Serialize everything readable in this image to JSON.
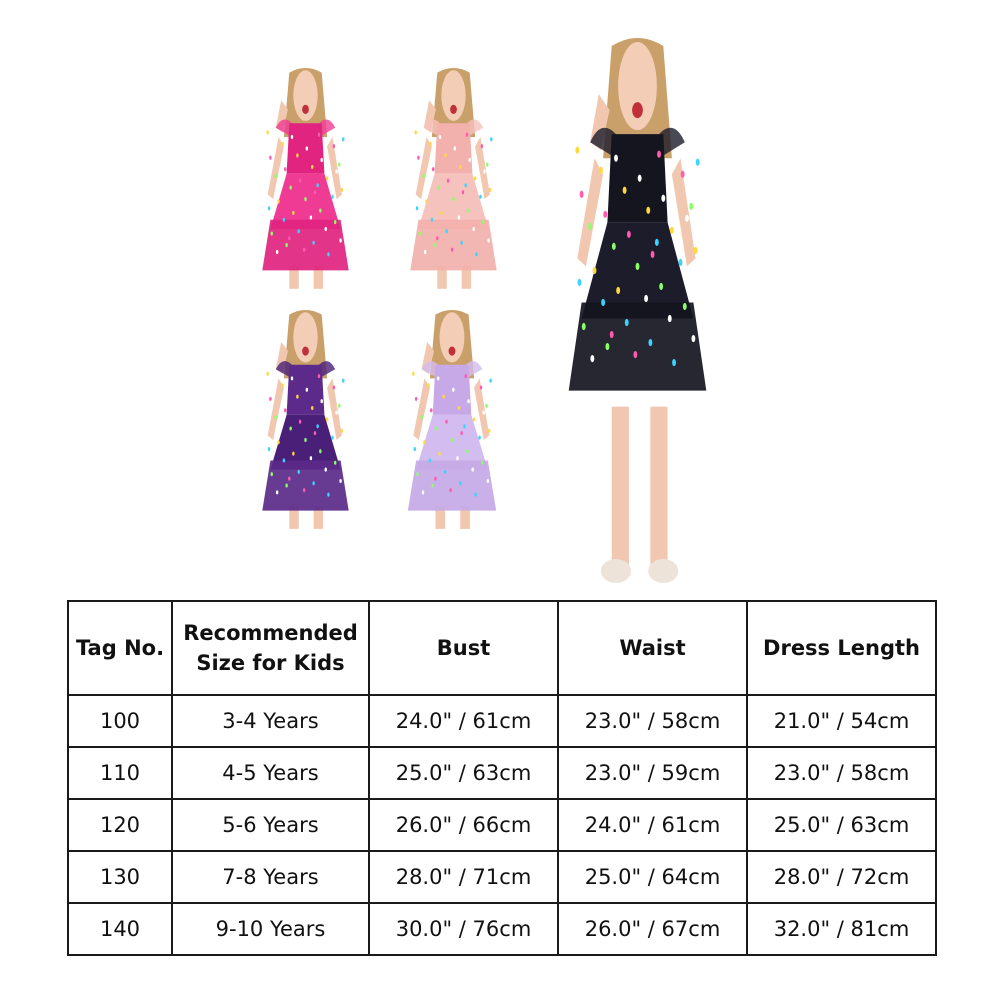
{
  "product_images": [
    {
      "name": "pink",
      "dress_color": "#e0247f",
      "skirt_color": "#f03b95"
    },
    {
      "name": "peach",
      "dress_color": "#f2b1ad",
      "skirt_color": "#f6c2bd"
    },
    {
      "name": "purple",
      "dress_color": "#5b2a8a",
      "skirt_color": "#4a1f78"
    },
    {
      "name": "lavender",
      "dress_color": "#c6a9e6",
      "skirt_color": "#d3bcef"
    },
    {
      "name": "black",
      "dress_color": "#151520",
      "skirt_color": "#1c1c2a"
    }
  ],
  "size_table": {
    "headers": [
      "Tag No.",
      "Recommended Size for Kids",
      "Bust",
      "Waist",
      "Dress Length"
    ],
    "header_lines": {
      "recommended_1": "Recommended",
      "recommended_2": "Size for Kids"
    },
    "rows": [
      [
        "100",
        "3-4 Years",
        "24.0\" / 61cm",
        "23.0\" / 58cm",
        "21.0\" / 54cm"
      ],
      [
        "110",
        "4-5 Years",
        "25.0\" / 63cm",
        "23.0\" / 59cm",
        "23.0\" / 58cm"
      ],
      [
        "120",
        "5-6 Years",
        "26.0\" / 66cm",
        "24.0\" / 61cm",
        "25.0\" / 63cm"
      ],
      [
        "130",
        "7-8 Years",
        "28.0\" / 71cm",
        "25.0\" / 64cm",
        "28.0\" / 72cm"
      ],
      [
        "140",
        "9-10 Years",
        "30.0\" / 76cm",
        "26.0\" / 67cm",
        "32.0\" / 81cm"
      ]
    ]
  }
}
